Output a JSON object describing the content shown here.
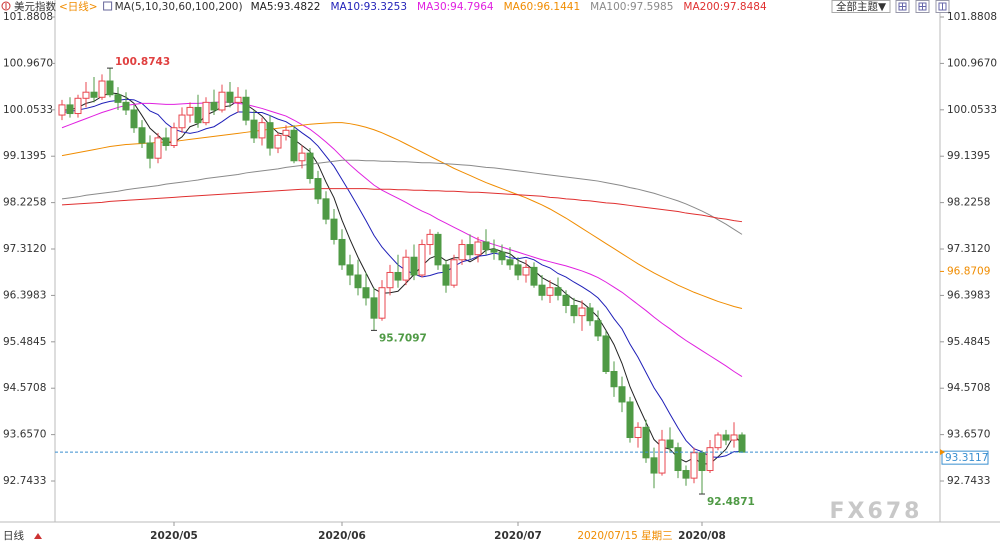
{
  "chart_data": {
    "type": "candlestick",
    "symbol": "美元指数",
    "period": "<日线>",
    "ma_params": "MA(5,10,30,60,100,200)",
    "categories": [
      null,
      null,
      null,
      null,
      null,
      null,
      null,
      null,
      null,
      null,
      null,
      null,
      null,
      null,
      "2020/05",
      null,
      null,
      null,
      null,
      null,
      null,
      null,
      null,
      null,
      null,
      null,
      null,
      null,
      null,
      null,
      null,
      null,
      null,
      null,
      null,
      "2020/06",
      null,
      null,
      null,
      null,
      null,
      null,
      null,
      null,
      null,
      null,
      null,
      null,
      null,
      null,
      null,
      null,
      null,
      null,
      null,
      null,
      null,
      "2020/07",
      null,
      null,
      null,
      null,
      null,
      null,
      null,
      null,
      null,
      null,
      null,
      null,
      null,
      null,
      null,
      null,
      null,
      null,
      null,
      null,
      null,
      null,
      "2020/08",
      null,
      null,
      null,
      null,
      null
    ],
    "candles": {
      "open": [
        99.95,
        100.15,
        99.98,
        100.28,
        100.4,
        100.3,
        100.62,
        100.35,
        100.2,
        100.05,
        99.7,
        99.4,
        99.1,
        99.5,
        99.35,
        99.7,
        99.95,
        100.1,
        99.8,
        100.2,
        100.05,
        100.4,
        100.2,
        100.3,
        99.85,
        99.5,
        99.8,
        99.3,
        99.55,
        99.65,
        99.05,
        99.2,
        98.7,
        98.3,
        97.9,
        97.5,
        97.0,
        96.8,
        96.55,
        96.35,
        95.95,
        96.55,
        96.85,
        96.7,
        97.15,
        96.8,
        97.4,
        97.6,
        97.0,
        96.6,
        97.1,
        97.4,
        97.2,
        97.45,
        97.3,
        97.25,
        97.1,
        97.0,
        96.8,
        96.95,
        96.6,
        96.4,
        96.55,
        96.4,
        96.2,
        96.0,
        96.15,
        95.9,
        95.6,
        94.9,
        94.6,
        94.3,
        93.6,
        93.8,
        93.2,
        92.9,
        93.55,
        93.4,
        92.95,
        92.8,
        93.3,
        92.95,
        93.4,
        93.65,
        93.55,
        93.65
      ],
      "high": [
        100.25,
        100.3,
        100.35,
        100.6,
        100.7,
        100.75,
        100.8743,
        100.5,
        100.4,
        100.15,
        99.85,
        99.55,
        99.6,
        99.7,
        99.8,
        100.1,
        100.2,
        100.35,
        100.3,
        100.45,
        100.55,
        100.6,
        100.5,
        100.45,
        100.05,
        99.9,
        99.95,
        99.6,
        99.75,
        99.75,
        99.35,
        99.3,
        98.85,
        98.45,
        98.1,
        97.7,
        97.2,
        97.1,
        96.85,
        96.55,
        96.7,
        97.0,
        97.2,
        97.3,
        97.4,
        97.5,
        97.7,
        97.65,
        97.1,
        97.2,
        97.5,
        97.6,
        97.55,
        97.7,
        97.5,
        97.4,
        97.35,
        97.15,
        97.1,
        97.05,
        96.8,
        96.7,
        96.75,
        96.5,
        96.35,
        96.3,
        96.25,
        96.1,
        95.7,
        95.1,
        94.8,
        94.4,
        93.9,
        93.95,
        93.4,
        93.75,
        93.8,
        93.5,
        93.05,
        93.4,
        93.35,
        93.55,
        93.7,
        93.75,
        93.9,
        93.7
      ],
      "low": [
        99.85,
        99.9,
        99.9,
        100.1,
        100.2,
        100.25,
        100.3,
        100.05,
        99.95,
        99.6,
        99.3,
        98.9,
        99.0,
        99.25,
        99.3,
        99.6,
        99.8,
        99.7,
        99.75,
        99.95,
        100.0,
        100.1,
        100.0,
        99.75,
        99.4,
        99.35,
        99.15,
        99.2,
        99.45,
        99.0,
        98.9,
        98.6,
        98.2,
        97.8,
        97.4,
        96.9,
        96.6,
        96.4,
        96.2,
        95.7097,
        95.9,
        96.4,
        96.55,
        96.6,
        96.7,
        96.75,
        97.2,
        96.9,
        96.45,
        96.55,
        97.0,
        97.1,
        97.05,
        97.2,
        97.1,
        97.0,
        96.9,
        96.7,
        96.65,
        96.55,
        96.3,
        96.25,
        96.3,
        96.05,
        95.85,
        95.7,
        95.8,
        95.5,
        94.85,
        94.4,
        94.1,
        93.5,
        93.4,
        93.1,
        92.6,
        92.85,
        93.3,
        92.8,
        92.65,
        92.7,
        92.4871,
        92.9,
        93.35,
        93.45,
        93.4,
        93.3
      ],
      "close": [
        100.15,
        99.98,
        100.28,
        100.4,
        100.3,
        100.62,
        100.35,
        100.2,
        100.05,
        99.7,
        99.4,
        99.1,
        99.5,
        99.35,
        99.7,
        99.95,
        100.1,
        99.8,
        100.2,
        100.05,
        100.4,
        100.2,
        100.3,
        99.85,
        99.5,
        99.8,
        99.3,
        99.55,
        99.65,
        99.05,
        99.2,
        98.7,
        98.3,
        97.9,
        97.5,
        97.0,
        96.8,
        96.55,
        96.35,
        95.95,
        96.55,
        96.85,
        96.7,
        97.15,
        96.8,
        97.4,
        97.6,
        97.0,
        96.6,
        97.1,
        97.4,
        97.2,
        97.45,
        97.3,
        97.25,
        97.1,
        97.0,
        96.8,
        96.95,
        96.6,
        96.4,
        96.55,
        96.4,
        96.2,
        96.0,
        96.15,
        95.9,
        95.6,
        94.9,
        94.6,
        94.3,
        93.6,
        93.8,
        93.2,
        92.9,
        93.55,
        93.4,
        92.95,
        92.8,
        93.3,
        92.95,
        93.4,
        93.65,
        93.55,
        93.65,
        93.3117
      ],
      "up_color": "#e8474f",
      "down_color": "#4f9a45"
    },
    "lines": [
      {
        "name": "MA5:93.4822",
        "color": "#222222",
        "values": [
          100.05,
          100.05,
          100.1,
          100.18,
          100.22,
          100.32,
          100.39,
          100.37,
          100.3,
          100.18,
          99.94,
          99.69,
          99.55,
          99.41,
          99.41,
          99.52,
          99.72,
          99.78,
          99.95,
          100.02,
          100.11,
          100.13,
          100.23,
          100.16,
          100.05,
          99.93,
          99.75,
          99.6,
          99.56,
          99.47,
          99.35,
          99.23,
          98.98,
          98.63,
          98.32,
          97.88,
          97.5,
          97.15,
          96.84,
          96.53,
          96.44,
          96.45,
          96.48,
          96.64,
          96.81,
          96.98,
          97.13,
          97.19,
          97.08,
          97.14,
          97.14,
          97.06,
          97.15,
          97.29,
          97.32,
          97.26,
          97.22,
          97.09,
          97.02,
          96.89,
          96.75,
          96.66,
          96.58,
          96.43,
          96.31,
          96.26,
          96.13,
          95.97,
          95.71,
          95.43,
          95.06,
          94.6,
          94.24,
          93.9,
          93.56,
          93.41,
          93.37,
          93.2,
          93.12,
          93.2,
          93.08,
          93.08,
          93.22,
          93.37,
          93.64,
          93.48
        ]
      },
      {
        "name": "MA10:93.3253",
        "color": "#1f1fb8",
        "values": [
          100.0,
          100.02,
          100.05,
          100.08,
          100.12,
          100.18,
          100.22,
          100.24,
          100.26,
          100.25,
          100.18,
          100.03,
          99.96,
          99.79,
          99.67,
          99.62,
          99.59,
          99.62,
          99.68,
          99.72,
          99.82,
          99.93,
          100.01,
          100.01,
          100.0,
          100.0,
          99.94,
          99.87,
          99.82,
          99.72,
          99.6,
          99.49,
          99.34,
          99.14,
          98.94,
          98.68,
          98.42,
          98.15,
          97.87,
          97.58,
          97.35,
          97.17,
          97.0,
          96.89,
          96.82,
          96.76,
          96.79,
          96.84,
          96.86,
          96.97,
          97.06,
          97.1,
          97.17,
          97.19,
          97.23,
          97.2,
          97.14,
          97.12,
          97.15,
          97.1,
          97.0,
          96.94,
          96.83,
          96.76,
          96.66,
          96.57,
          96.47,
          96.35,
          96.17,
          95.94,
          95.74,
          95.44,
          95.18,
          94.88,
          94.58,
          94.34,
          94.06,
          93.79,
          93.54,
          93.38,
          93.32,
          93.22,
          93.21,
          93.24,
          93.32,
          93.33
        ]
      },
      {
        "name": "MA30:94.7964",
        "color": "#e020e0",
        "values": [
          99.7,
          99.76,
          99.82,
          99.88,
          99.94,
          100.0,
          100.05,
          100.1,
          100.14,
          100.16,
          100.18,
          100.18,
          100.17,
          100.16,
          100.16,
          100.17,
          100.18,
          100.18,
          100.19,
          100.2,
          100.21,
          100.2,
          100.18,
          100.16,
          100.12,
          100.08,
          100.03,
          99.98,
          99.93,
          99.85,
          99.76,
          99.67,
          99.55,
          99.42,
          99.28,
          99.12,
          98.97,
          98.83,
          98.7,
          98.57,
          98.47,
          98.39,
          98.31,
          98.23,
          98.14,
          98.06,
          97.99,
          97.9,
          97.82,
          97.74,
          97.66,
          97.58,
          97.5,
          97.45,
          97.4,
          97.35,
          97.3,
          97.25,
          97.2,
          97.15,
          97.1,
          97.06,
          97.02,
          96.98,
          96.93,
          96.88,
          96.82,
          96.75,
          96.66,
          96.56,
          96.46,
          96.34,
          96.22,
          96.1,
          95.97,
          95.85,
          95.74,
          95.62,
          95.51,
          95.41,
          95.31,
          95.21,
          95.11,
          95.01,
          94.9,
          94.8
        ]
      },
      {
        "name": "MA60:96.1441",
        "color": "#f08c00",
        "values": [
          99.15,
          99.18,
          99.21,
          99.24,
          99.27,
          99.3,
          99.33,
          99.35,
          99.37,
          99.38,
          99.39,
          99.4,
          99.41,
          99.42,
          99.43,
          99.45,
          99.47,
          99.49,
          99.51,
          99.53,
          99.55,
          99.57,
          99.59,
          99.61,
          99.63,
          99.65,
          99.67,
          99.69,
          99.71,
          99.73,
          99.75,
          99.77,
          99.78,
          99.79,
          99.8,
          99.8,
          99.78,
          99.75,
          99.71,
          99.66,
          99.6,
          99.53,
          99.46,
          99.38,
          99.3,
          99.22,
          99.14,
          99.06,
          98.98,
          98.9,
          98.83,
          98.76,
          98.69,
          98.62,
          98.56,
          98.5,
          98.44,
          98.38,
          98.32,
          98.25,
          98.18,
          98.1,
          98.01,
          97.92,
          97.82,
          97.72,
          97.62,
          97.52,
          97.42,
          97.32,
          97.22,
          97.12,
          97.02,
          96.93,
          96.84,
          96.76,
          96.68,
          96.6,
          96.53,
          96.46,
          96.4,
          96.34,
          96.28,
          96.23,
          96.18,
          96.14
        ]
      },
      {
        "name": "MA100:97.5985",
        "color": "#8a8a8a",
        "values": [
          98.3,
          98.32,
          98.34,
          98.37,
          98.39,
          98.41,
          98.43,
          98.45,
          98.48,
          98.5,
          98.52,
          98.54,
          98.56,
          98.59,
          98.61,
          98.63,
          98.65,
          98.67,
          98.7,
          98.72,
          98.74,
          98.76,
          98.78,
          98.81,
          98.83,
          98.85,
          98.87,
          98.89,
          98.92,
          98.94,
          98.96,
          98.98,
          99.0,
          99.02,
          99.04,
          99.06,
          99.06,
          99.06,
          99.05,
          99.05,
          99.04,
          99.04,
          99.03,
          99.03,
          99.02,
          99.01,
          99.01,
          99.0,
          98.99,
          98.98,
          98.97,
          98.96,
          98.94,
          98.92,
          98.91,
          98.89,
          98.87,
          98.85,
          98.83,
          98.81,
          98.79,
          98.77,
          98.75,
          98.73,
          98.71,
          98.69,
          98.67,
          98.65,
          98.62,
          98.59,
          98.56,
          98.52,
          98.49,
          98.45,
          98.41,
          98.36,
          98.31,
          98.26,
          98.2,
          98.13,
          98.06,
          97.98,
          97.89,
          97.8,
          97.7,
          97.6
        ]
      },
      {
        "name": "MA200:97.8484",
        "color": "#e03030",
        "values": [
          98.18,
          98.19,
          98.2,
          98.21,
          98.22,
          98.23,
          98.25,
          98.26,
          98.27,
          98.28,
          98.29,
          98.3,
          98.31,
          98.32,
          98.33,
          98.34,
          98.35,
          98.36,
          98.37,
          98.38,
          98.39,
          98.4,
          98.41,
          98.42,
          98.43,
          98.44,
          98.45,
          98.46,
          98.47,
          98.48,
          98.49,
          98.49,
          98.5,
          98.5,
          98.5,
          98.5,
          98.5,
          98.5,
          98.5,
          98.49,
          98.49,
          98.49,
          98.48,
          98.48,
          98.47,
          98.47,
          98.46,
          98.46,
          98.45,
          98.45,
          98.44,
          98.43,
          98.43,
          98.42,
          98.41,
          98.4,
          98.39,
          98.38,
          98.37,
          98.36,
          98.35,
          98.33,
          98.32,
          98.3,
          98.29,
          98.27,
          98.26,
          98.24,
          98.22,
          98.21,
          98.19,
          98.17,
          98.15,
          98.13,
          98.11,
          98.09,
          98.07,
          98.05,
          98.02,
          98.0,
          97.98,
          97.95,
          97.92,
          97.9,
          97.87,
          97.85
        ]
      }
    ],
    "ylim": [
      91.9756,
      102.2156
    ],
    "yticks": [
      101.8808,
      {
        "value": 100.967,
        "label": "100.9670"
      },
      100.0533,
      99.1395,
      98.2258,
      {
        "value": 97.312,
        "label": "97.3120"
      },
      96.3983,
      95.4845,
      94.5708,
      {
        "value": 93.657,
        "label": "93.6570"
      },
      92.7433
    ],
    "last_price_color": "#3a8fd0",
    "price_markers": [
      {
        "value": 96.8709,
        "color": "#f08c00"
      }
    ],
    "cursor_label": "2020/07/15 星期三",
    "period_tab": "日线",
    "theme_button": "全部主题▼",
    "watermark": "FX678"
  }
}
